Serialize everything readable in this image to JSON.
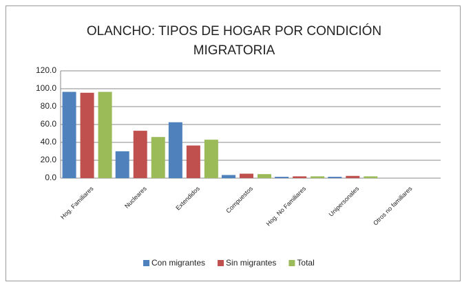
{
  "chart_data": {
    "type": "bar",
    "title": "OLANCHO: TIPOS DE HOGAR POR CONDICIÓN MIGRATORIA",
    "categories": [
      "Hog. Familiares",
      "Nucleares",
      "Extendidos",
      "Compuestos",
      "Hog. No Familiares",
      "Unipersonales",
      "Otros no familiares"
    ],
    "series": [
      {
        "name": "Con migrantes",
        "color": "#4f81bd",
        "values": [
          96.5,
          30,
          62.5,
          3.5,
          1.5,
          1.5,
          0
        ]
      },
      {
        "name": "Sin migrantes",
        "color": "#c0504d",
        "values": [
          95.5,
          53,
          36.5,
          5,
          2,
          2.5,
          0
        ]
      },
      {
        "name": "Total",
        "color": "#9bbb59",
        "values": [
          96.5,
          46,
          43,
          4.5,
          2,
          2,
          0
        ]
      }
    ],
    "ylim": [
      0,
      120
    ],
    "yticks": [
      {
        "value": 0,
        "label": "0.0"
      },
      {
        "value": 20,
        "label": "20.0"
      },
      {
        "value": 40,
        "label": "40.0"
      },
      {
        "value": 60,
        "label": "60.0"
      },
      {
        "value": 80,
        "label": "80.0"
      },
      {
        "value": 100,
        "label": "100.0"
      },
      {
        "value": 120,
        "label": "120.0"
      }
    ],
    "grid": true,
    "legend": "bottom"
  }
}
